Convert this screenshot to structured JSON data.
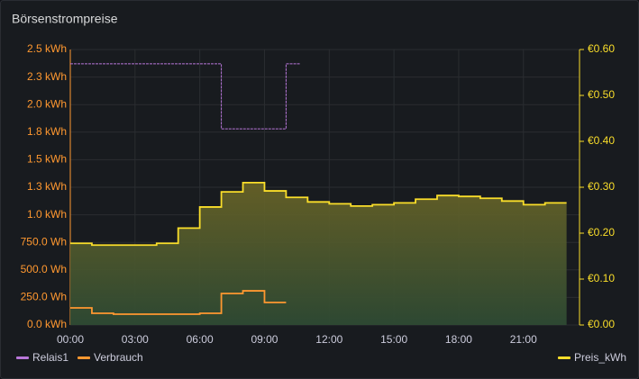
{
  "title": "Börsenstrompreise",
  "chart_data": {
    "type": "line",
    "xlim": [
      0,
      23.6
    ],
    "xticks": [
      {
        "value": 0,
        "label": "00:00"
      },
      {
        "value": 3,
        "label": "03:00"
      },
      {
        "value": 6,
        "label": "06:00"
      },
      {
        "value": 9,
        "label": "09:00"
      },
      {
        "value": 12,
        "label": "12:00"
      },
      {
        "value": 15,
        "label": "15:00"
      },
      {
        "value": 18,
        "label": "18:00"
      },
      {
        "value": 21,
        "label": "21:00"
      }
    ],
    "ylim": [
      0,
      2500
    ],
    "yticks": [
      {
        "value": 0,
        "label": "0.0 kWh"
      },
      {
        "value": 250,
        "label": "250.0 Wh"
      },
      {
        "value": 500,
        "label": "500.0 Wh"
      },
      {
        "value": 750,
        "label": "750.0 Wh"
      },
      {
        "value": 1000,
        "label": "1.0 kWh"
      },
      {
        "value": 1250,
        "label": "1.3 kWh"
      },
      {
        "value": 1500,
        "label": "1.5 kWh"
      },
      {
        "value": 1750,
        "label": "1.8 kWh"
      },
      {
        "value": 2000,
        "label": "2.0 kWh"
      },
      {
        "value": 2250,
        "label": "2.3 kWh"
      },
      {
        "value": 2500,
        "label": "2.5 kWh"
      }
    ],
    "y2lim": [
      0,
      0.6
    ],
    "y2ticks": [
      {
        "value": 0,
        "label": "€0.00"
      },
      {
        "value": 0.1,
        "label": "€0.10"
      },
      {
        "value": 0.2,
        "label": "€0.20"
      },
      {
        "value": 0.3,
        "label": "€0.30"
      },
      {
        "value": 0.4,
        "label": "€0.40"
      },
      {
        "value": 0.5,
        "label": "€0.50"
      },
      {
        "value": 0.6,
        "label": "€0.60"
      }
    ],
    "grid": true,
    "series": [
      {
        "name": "Relais1",
        "color": "#b877d9",
        "x": [
          0,
          7,
          10,
          10.67
        ],
        "values": [
          2370,
          1780,
          2370,
          2370
        ]
      },
      {
        "name": "Verbrauch",
        "color": "#ff9830",
        "x": [
          0,
          1,
          2,
          3,
          4,
          5,
          6,
          7,
          8,
          9,
          10
        ],
        "values": [
          155,
          106,
          98,
          98,
          98,
          98,
          106,
          286,
          310,
          204,
          204
        ]
      },
      {
        "name": "Preis_kWh",
        "color": "#fade2a",
        "axis": "y2",
        "fill": true,
        "x": [
          0,
          1,
          2,
          3,
          4,
          5,
          6,
          7,
          8,
          9,
          10,
          11,
          12,
          13,
          14,
          15,
          16,
          17,
          18,
          19,
          20,
          21,
          22,
          23
        ],
        "values": [
          0.178,
          0.174,
          0.174,
          0.174,
          0.178,
          0.211,
          0.257,
          0.29,
          0.31,
          0.292,
          0.278,
          0.268,
          0.264,
          0.259,
          0.262,
          0.266,
          0.274,
          0.282,
          0.28,
          0.276,
          0.27,
          0.262,
          0.266,
          0.266
        ]
      }
    ]
  }
}
